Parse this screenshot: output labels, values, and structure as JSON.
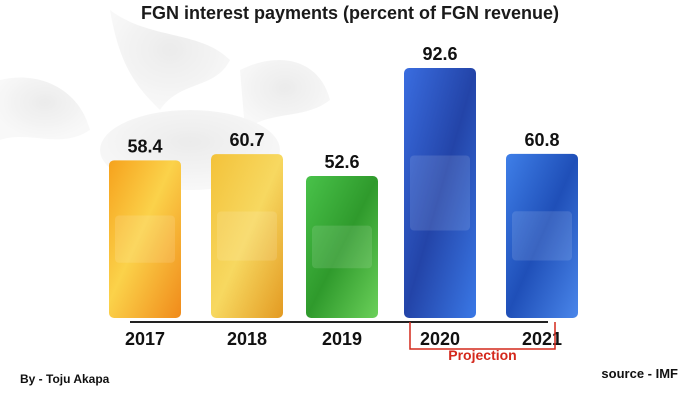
{
  "chart_data": {
    "type": "bar",
    "title": "FGN interest payments (percent of FGN revenue)",
    "categories": [
      "2017",
      "2018",
      "2019",
      "2020",
      "2021"
    ],
    "values": [
      58.4,
      60.7,
      52.6,
      92.6,
      60.8
    ],
    "ylim": [
      0,
      100
    ],
    "grid": false,
    "bar_colors": [
      "#f5b52a",
      "#f0b22e",
      "#3fae3a",
      "#2f58c8",
      "#2a62d8"
    ],
    "annotation": {
      "label": "Projection",
      "categories": [
        "2020",
        "2021"
      ],
      "color": "#d4281c"
    }
  },
  "footer": {
    "author": "By - Toju Akapa",
    "source": "source - IMF"
  }
}
